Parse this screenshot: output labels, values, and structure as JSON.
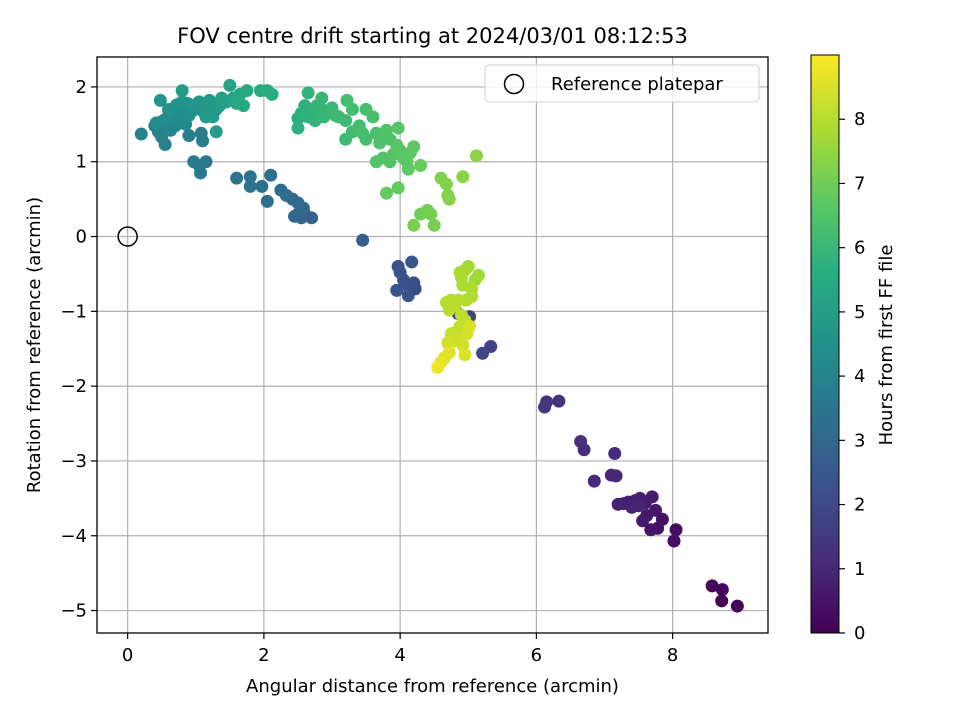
{
  "chart_data": {
    "type": "scatter",
    "title": "FOV centre drift starting at 2024/03/01 08:12:53",
    "xlabel": "Angular distance from reference (arcmin)",
    "ylabel": "Rotation from reference (arcmin)",
    "xlim": [
      -0.45,
      9.4
    ],
    "ylim": [
      -5.3,
      2.4
    ],
    "xticks": [
      0,
      2,
      4,
      6,
      8
    ],
    "yticks": [
      -5,
      -4,
      -3,
      -2,
      -1,
      0,
      1,
      2
    ],
    "ytick_labels": [
      "−5",
      "−4",
      "−3",
      "−2",
      "−1",
      "0",
      "1",
      "2"
    ],
    "grid": true,
    "legend": {
      "location": "upper right",
      "entries": [
        "Reference platepar"
      ]
    },
    "reference_point": {
      "x": 0,
      "y": 0,
      "label": "Reference platepar"
    },
    "colorbar": {
      "label": "Hours from first FF file",
      "colormap": "viridis",
      "range": [
        0,
        9
      ],
      "ticks": [
        0,
        1,
        2,
        3,
        4,
        5,
        6,
        7,
        8
      ]
    },
    "points": [
      [
        8.95,
        -4.94,
        0.05
      ],
      [
        8.72,
        -4.87,
        0.1
      ],
      [
        8.73,
        -4.72,
        0.15
      ],
      [
        8.58,
        -4.67,
        0.2
      ],
      [
        8.02,
        -4.07,
        0.3
      ],
      [
        8.05,
        -3.92,
        0.35
      ],
      [
        7.85,
        -3.78,
        0.4
      ],
      [
        7.78,
        -3.9,
        0.45
      ],
      [
        7.68,
        -3.92,
        0.5
      ],
      [
        7.75,
        -3.66,
        0.55
      ],
      [
        7.62,
        -3.73,
        0.6
      ],
      [
        7.56,
        -3.8,
        0.65
      ],
      [
        7.7,
        -3.48,
        0.7
      ],
      [
        7.6,
        -3.56,
        0.72
      ],
      [
        7.52,
        -3.5,
        0.75
      ],
      [
        7.45,
        -3.53,
        0.78
      ],
      [
        7.35,
        -3.55,
        0.8
      ],
      [
        7.28,
        -3.57,
        0.82
      ],
      [
        7.2,
        -3.58,
        0.85
      ],
      [
        7.5,
        -3.6,
        0.88
      ],
      [
        7.4,
        -3.62,
        0.9
      ],
      [
        7.17,
        -3.2,
        0.95
      ],
      [
        7.1,
        -3.19,
        1.0
      ],
      [
        6.85,
        -3.27,
        1.05
      ],
      [
        7.15,
        -2.9,
        1.1
      ],
      [
        6.7,
        -2.85,
        1.15
      ],
      [
        6.65,
        -2.74,
        1.2
      ],
      [
        6.33,
        -2.2,
        1.3
      ],
      [
        6.15,
        -2.21,
        1.35
      ],
      [
        6.12,
        -2.28,
        1.4
      ],
      [
        5.33,
        -1.47,
        1.8
      ],
      [
        5.21,
        -1.56,
        1.85
      ],
      [
        5.02,
        -1.07,
        1.9
      ],
      [
        4.85,
        -1.03,
        1.95
      ],
      [
        4.22,
        -0.7,
        2.05
      ],
      [
        4.2,
        -0.62,
        2.1
      ],
      [
        4.1,
        -0.65,
        2.15
      ],
      [
        4.05,
        -0.58,
        2.2
      ],
      [
        4.0,
        -0.48,
        2.25
      ],
      [
        3.97,
        -0.4,
        2.3
      ],
      [
        3.95,
        -0.72,
        2.35
      ],
      [
        4.12,
        -0.79,
        2.4
      ],
      [
        4.17,
        -0.34,
        2.45
      ],
      [
        3.45,
        -0.05,
        2.6
      ],
      [
        2.7,
        0.25,
        2.8
      ],
      [
        2.6,
        0.3,
        2.85
      ],
      [
        2.55,
        0.25,
        2.9
      ],
      [
        2.5,
        0.3,
        2.95
      ],
      [
        2.45,
        0.27,
        3.0
      ],
      [
        2.58,
        0.38,
        3.05
      ],
      [
        2.5,
        0.45,
        3.1
      ],
      [
        2.42,
        0.5,
        3.12
      ],
      [
        2.33,
        0.55,
        3.15
      ],
      [
        2.25,
        0.62,
        3.2
      ],
      [
        2.1,
        0.82,
        3.25
      ],
      [
        2.05,
        0.47,
        3.3
      ],
      [
        1.97,
        0.67,
        3.35
      ],
      [
        1.8,
        0.67,
        3.4
      ],
      [
        1.8,
        0.8,
        3.45
      ],
      [
        1.6,
        0.78,
        3.5
      ],
      [
        1.15,
        1.0,
        3.55
      ],
      [
        1.07,
        0.85,
        3.6
      ],
      [
        1.05,
        0.95,
        3.65
      ],
      [
        0.97,
        1.0,
        3.7
      ],
      [
        1.1,
        1.28,
        3.75
      ],
      [
        1.08,
        1.38,
        3.8
      ],
      [
        0.9,
        1.35,
        3.85
      ],
      [
        0.55,
        1.23,
        3.9
      ],
      [
        0.5,
        1.33,
        3.92
      ],
      [
        0.45,
        1.4,
        3.95
      ],
      [
        0.2,
        1.37,
        4.0
      ],
      [
        0.4,
        1.48,
        4.05
      ],
      [
        0.55,
        1.5,
        4.1
      ],
      [
        0.63,
        1.42,
        4.12
      ],
      [
        0.7,
        1.48,
        4.15
      ],
      [
        0.75,
        1.55,
        4.2
      ],
      [
        0.85,
        1.5,
        4.25
      ],
      [
        0.6,
        1.62,
        4.3
      ],
      [
        0.52,
        1.55,
        4.32
      ],
      [
        0.42,
        1.52,
        4.35
      ],
      [
        0.68,
        1.6,
        4.38
      ],
      [
        0.75,
        1.65,
        4.4
      ],
      [
        0.9,
        1.62,
        4.42
      ],
      [
        0.82,
        1.7,
        4.45
      ],
      [
        0.95,
        1.68,
        4.5
      ],
      [
        1.0,
        1.72,
        4.52
      ],
      [
        1.1,
        1.68,
        4.55
      ],
      [
        1.2,
        1.65,
        4.57
      ],
      [
        0.6,
        1.7,
        4.6
      ],
      [
        0.48,
        1.82,
        4.62
      ],
      [
        0.72,
        1.76,
        4.65
      ],
      [
        0.8,
        1.8,
        4.67
      ],
      [
        0.88,
        1.78,
        4.7
      ],
      [
        0.95,
        1.75,
        4.72
      ],
      [
        1.05,
        1.8,
        4.75
      ],
      [
        1.12,
        1.75,
        4.77
      ],
      [
        1.2,
        1.82,
        4.8
      ],
      [
        1.25,
        1.72,
        4.82
      ],
      [
        1.3,
        1.7,
        4.85
      ],
      [
        1.35,
        1.75,
        4.87
      ],
      [
        1.15,
        1.6,
        4.88
      ],
      [
        1.25,
        1.6,
        4.9
      ],
      [
        1.3,
        1.4,
        4.92
      ],
      [
        0.8,
        1.95,
        4.95
      ],
      [
        1.38,
        1.85,
        5.05
      ],
      [
        1.45,
        1.8,
        5.1
      ],
      [
        1.5,
        2.02,
        5.2
      ],
      [
        1.55,
        1.85,
        5.25
      ],
      [
        1.6,
        1.78,
        5.3
      ],
      [
        1.65,
        1.9,
        5.35
      ],
      [
        1.7,
        1.75,
        5.4
      ],
      [
        1.75,
        1.95,
        5.45
      ],
      [
        1.95,
        1.95,
        5.5
      ],
      [
        2.05,
        1.95,
        5.55
      ],
      [
        2.12,
        1.9,
        5.6
      ],
      [
        2.5,
        1.58,
        5.65
      ],
      [
        2.5,
        1.45,
        5.7
      ],
      [
        2.55,
        1.65,
        5.72
      ],
      [
        2.6,
        1.75,
        5.75
      ],
      [
        2.65,
        1.6,
        5.78
      ],
      [
        2.7,
        1.68,
        5.8
      ],
      [
        2.75,
        1.55,
        5.82
      ],
      [
        2.8,
        1.6,
        5.85
      ],
      [
        2.65,
        1.92,
        5.88
      ],
      [
        2.78,
        1.75,
        5.9
      ],
      [
        2.85,
        1.7,
        5.92
      ],
      [
        2.88,
        1.6,
        5.95
      ],
      [
        2.85,
        1.85,
        5.97
      ],
      [
        3.0,
        1.72,
        6.0
      ],
      [
        3.05,
        1.62,
        6.05
      ],
      [
        3.1,
        1.6,
        6.08
      ],
      [
        3.2,
        1.55,
        6.1
      ],
      [
        3.2,
        1.3,
        6.12
      ],
      [
        3.3,
        1.4,
        6.15
      ],
      [
        3.22,
        1.82,
        6.18
      ],
      [
        3.3,
        1.7,
        6.2
      ],
      [
        3.4,
        1.48,
        6.22
      ],
      [
        3.45,
        1.38,
        6.25
      ],
      [
        3.5,
        1.3,
        6.28
      ],
      [
        3.5,
        1.7,
        6.3
      ],
      [
        3.6,
        1.6,
        6.32
      ],
      [
        3.65,
        1.38,
        6.35
      ],
      [
        3.75,
        1.35,
        6.38
      ],
      [
        3.85,
        1.3,
        6.4
      ],
      [
        3.8,
        1.42,
        6.42
      ],
      [
        3.7,
        1.25,
        6.45
      ],
      [
        3.65,
        1.0,
        6.48
      ],
      [
        3.75,
        1.05,
        6.5
      ],
      [
        3.85,
        1.0,
        6.52
      ],
      [
        3.9,
        1.1,
        6.55
      ],
      [
        3.95,
        1.22,
        6.58
      ],
      [
        3.97,
        1.45,
        6.6
      ],
      [
        4.0,
        1.15,
        6.62
      ],
      [
        4.05,
        1.05,
        6.65
      ],
      [
        4.1,
        1.0,
        6.68
      ],
      [
        4.15,
        1.12,
        6.7
      ],
      [
        4.2,
        1.2,
        6.72
      ],
      [
        4.12,
        0.9,
        6.75
      ],
      [
        3.97,
        0.65,
        6.78
      ],
      [
        3.8,
        0.58,
        6.8
      ],
      [
        4.3,
        0.95,
        6.85
      ],
      [
        4.3,
        0.3,
        7.0
      ],
      [
        4.4,
        0.35,
        7.05
      ],
      [
        4.45,
        0.3,
        7.1
      ],
      [
        4.5,
        0.15,
        7.12
      ],
      [
        4.2,
        0.15,
        7.15
      ],
      [
        4.6,
        0.78,
        7.2
      ],
      [
        4.68,
        0.7,
        7.25
      ],
      [
        4.7,
        0.55,
        7.3
      ],
      [
        4.72,
        0.5,
        7.32
      ],
      [
        4.92,
        0.8,
        7.35
      ],
      [
        5.12,
        1.08,
        7.4
      ],
      [
        5.15,
        -0.52,
        7.7
      ],
      [
        5.1,
        -0.58,
        7.72
      ],
      [
        5.0,
        -0.4,
        7.75
      ],
      [
        4.95,
        -0.45,
        7.78
      ],
      [
        4.88,
        -0.48,
        7.8
      ],
      [
        4.9,
        -0.55,
        7.82
      ],
      [
        4.92,
        -0.65,
        7.85
      ],
      [
        5.05,
        -0.7,
        7.88
      ],
      [
        5.05,
        -0.8,
        7.9
      ],
      [
        4.97,
        -0.85,
        7.92
      ],
      [
        4.85,
        -0.85,
        7.94
      ],
      [
        4.75,
        -0.85,
        7.96
      ],
      [
        4.68,
        -0.88,
        7.98
      ],
      [
        4.8,
        -0.92,
        8.0
      ],
      [
        4.72,
        -0.98,
        8.02
      ],
      [
        4.9,
        -1.05,
        8.1
      ],
      [
        4.95,
        -1.12,
        8.12
      ],
      [
        4.88,
        -1.2,
        8.15
      ],
      [
        4.82,
        -1.28,
        8.18
      ],
      [
        4.75,
        -1.3,
        8.2
      ],
      [
        4.85,
        -1.35,
        8.25
      ],
      [
        4.78,
        -1.4,
        8.3
      ],
      [
        4.7,
        -1.42,
        8.35
      ],
      [
        4.92,
        -1.45,
        8.38
      ],
      [
        4.98,
        -1.3,
        8.4
      ],
      [
        5.02,
        -1.2,
        8.45
      ],
      [
        4.95,
        -1.58,
        8.5
      ],
      [
        4.65,
        -1.62,
        8.55
      ],
      [
        4.72,
        -1.55,
        8.6
      ],
      [
        4.6,
        -1.68,
        8.7
      ],
      [
        4.55,
        -1.75,
        8.8
      ]
    ]
  }
}
